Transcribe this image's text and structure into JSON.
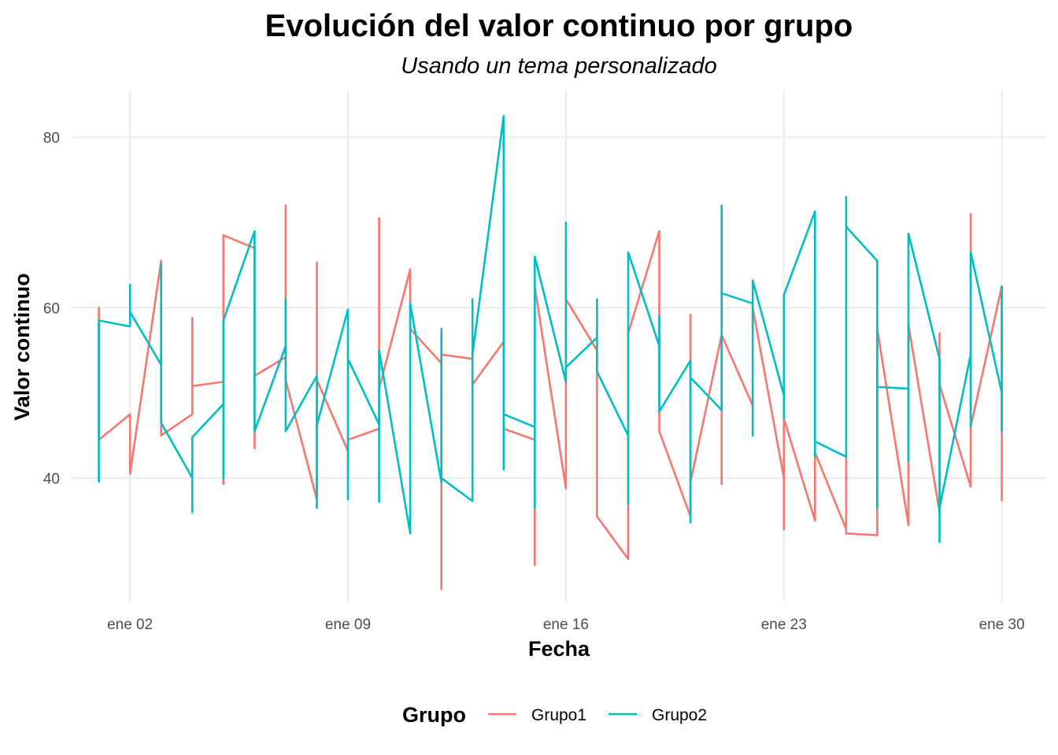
{
  "chart_data": {
    "type": "line",
    "title": "Evolución del valor continuo por grupo",
    "subtitle": "Usando un tema personalizado",
    "xlabel": "Fecha",
    "ylabel": "Valor continuo",
    "x_ticks": [
      {
        "day": 2,
        "label": "ene 02"
      },
      {
        "day": 9,
        "label": "ene 09"
      },
      {
        "day": 16,
        "label": "ene 16"
      },
      {
        "day": 23,
        "label": "ene 23"
      },
      {
        "day": 30,
        "label": "ene 30"
      }
    ],
    "y_ticks": [
      40,
      60,
      80
    ],
    "xlim_days": [
      0.1,
      31.4
    ],
    "ylim": [
      25.5,
      85.5
    ],
    "grid": true,
    "legend": {
      "title": "Grupo",
      "position": "bottom"
    },
    "series": [
      {
        "name": "Grupo1",
        "color": "#F8766D",
        "days": [
          1,
          1,
          1,
          2,
          2,
          2,
          3,
          3,
          3,
          4,
          4,
          4,
          5,
          5,
          5,
          6,
          6,
          6,
          7,
          7,
          7,
          8,
          8,
          8,
          9,
          9,
          9,
          10,
          10,
          10,
          11,
          11,
          11,
          12,
          12,
          12,
          13,
          13,
          13,
          14,
          14,
          14,
          15,
          15,
          15,
          16,
          16,
          16,
          17,
          17,
          17,
          18,
          18,
          18,
          19,
          19,
          19,
          20,
          20,
          20,
          21,
          21,
          21,
          22,
          22,
          22,
          23,
          23,
          23,
          24,
          24,
          24,
          25,
          25,
          25,
          26,
          26,
          26,
          27,
          27,
          27,
          28,
          28,
          28,
          29,
          29,
          29,
          30,
          30,
          30
        ],
        "values": [
          51.0,
          60.0,
          44.5,
          47.5,
          41.0,
          40.5,
          65.5,
          56.0,
          45.0,
          47.5,
          58.8,
          50.8,
          51.3,
          39.3,
          68.5,
          67.0,
          43.5,
          52.0,
          54.2,
          72.0,
          51.5,
          37.5,
          65.3,
          51.5,
          43.2,
          40.5,
          44.5,
          45.8,
          70.5,
          50.5,
          64.5,
          62.0,
          57.5,
          53.5,
          27.0,
          54.5,
          54.0,
          50.5,
          51.0,
          56.0,
          51.2,
          45.8,
          44.5,
          29.8,
          62.5,
          38.8,
          67.5,
          61.0,
          55.0,
          43.0,
          35.5,
          30.5,
          57.5,
          57.0,
          69.0,
          59.0,
          45.5,
          35.5,
          59.2,
          39.5,
          56.8,
          39.3,
          56.8,
          48.5,
          45.5,
          60.0,
          40.0,
          34.0,
          47.0,
          35.0,
          42.5,
          43.0,
          34.0,
          42.5,
          33.5,
          33.3,
          45.0,
          57.5,
          34.5,
          42.0,
          58.0,
          36.0,
          57.0,
          51.0,
          39.0,
          71.0,
          46.0,
          62.5,
          44.5,
          37.3
        ]
      },
      {
        "name": "Grupo2",
        "color": "#00BFC4",
        "days": [
          1,
          1,
          1,
          2,
          2,
          2,
          3,
          3,
          3,
          4,
          4,
          4,
          5,
          5,
          5,
          6,
          6,
          6,
          7,
          7,
          7,
          8,
          8,
          8,
          9,
          9,
          9,
          10,
          10,
          10,
          11,
          11,
          11,
          12,
          12,
          12,
          13,
          13,
          13,
          14,
          14,
          14,
          15,
          15,
          15,
          16,
          16,
          16,
          17,
          17,
          17,
          18,
          18,
          18,
          19,
          19,
          19,
          20,
          20,
          20,
          21,
          21,
          21,
          22,
          22,
          22,
          23,
          23,
          23,
          24,
          24,
          24,
          25,
          25,
          25,
          26,
          26,
          26,
          27,
          27,
          27,
          28,
          28,
          28,
          29,
          29,
          29,
          30,
          30,
          30
        ],
        "values": [
          39.5,
          44.5,
          58.5,
          57.8,
          62.7,
          59.5,
          53.3,
          65.0,
          46.5,
          40.0,
          36.0,
          44.8,
          48.7,
          40.0,
          58.5,
          69.0,
          46.5,
          45.5,
          55.5,
          61.0,
          45.5,
          52.0,
          36.5,
          46.2,
          59.8,
          37.5,
          54.0,
          46.3,
          37.2,
          55.0,
          33.5,
          38.5,
          60.5,
          39.5,
          57.5,
          40.0,
          37.3,
          61.0,
          54.5,
          82.5,
          41.0,
          47.5,
          46.0,
          36.5,
          66.0,
          51.3,
          70.0,
          53.0,
          56.5,
          61.0,
          52.5,
          45.0,
          37.0,
          66.5,
          55.5,
          59.0,
          47.8,
          53.8,
          34.8,
          51.8,
          48.0,
          72.0,
          61.7,
          60.5,
          45.0,
          63.2,
          49.7,
          47.0,
          61.5,
          71.3,
          42.5,
          44.3,
          42.5,
          73.0,
          69.5,
          65.5,
          36.5,
          50.7,
          50.5,
          42.0,
          68.7,
          54.0,
          32.5,
          36.5,
          54.5,
          46.0,
          66.5,
          50.0,
          62.5,
          45.5
        ]
      }
    ]
  }
}
